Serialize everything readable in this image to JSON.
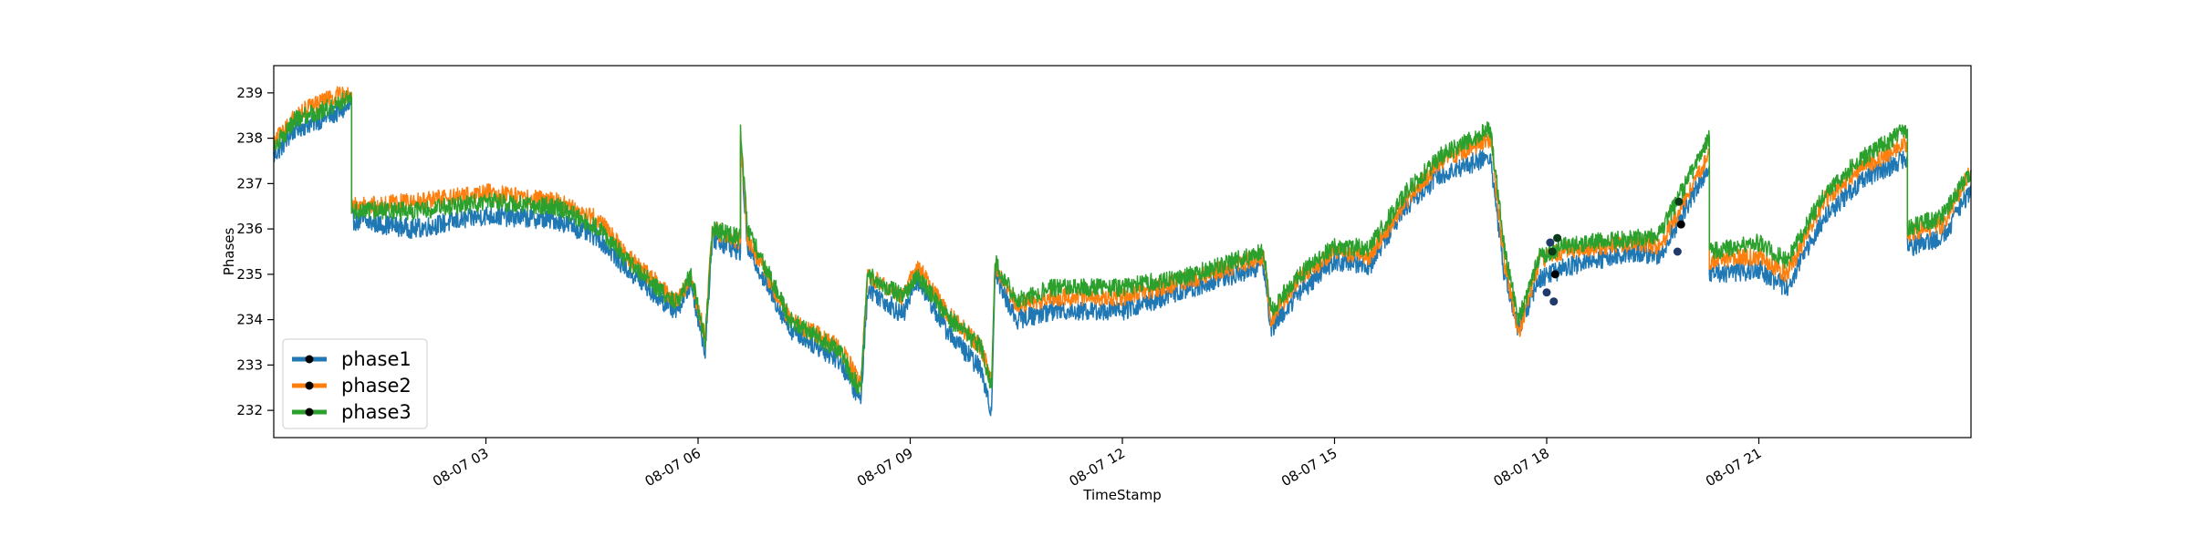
{
  "chart_data": {
    "type": "line",
    "title": "",
    "xlabel": "TimeStamp",
    "ylabel": "Phases",
    "x_range_hours": [
      0.0,
      24.0
    ],
    "ylim": [
      231.4,
      239.6
    ],
    "x_ticks": [
      {
        "hour": 3,
        "label": "08-07 03"
      },
      {
        "hour": 6,
        "label": "08-07 06"
      },
      {
        "hour": 9,
        "label": "08-07 09"
      },
      {
        "hour": 12,
        "label": "08-07 12"
      },
      {
        "hour": 15,
        "label": "08-07 15"
      },
      {
        "hour": 18,
        "label": "08-07 18"
      },
      {
        "hour": 21,
        "label": "08-07 21"
      }
    ],
    "y_ticks": [
      232,
      233,
      234,
      235,
      236,
      237,
      238,
      239
    ],
    "grid": false,
    "legend_position": "lower-left",
    "series": [
      {
        "name": "phase1",
        "color": "#1f77b4",
        "noise": 0.22,
        "points": [
          [
            0,
            237.6
          ],
          [
            0.3,
            238.2
          ],
          [
            0.8,
            238.5
          ],
          [
            1.1,
            238.7
          ],
          [
            1.1,
            236.2
          ],
          [
            2.0,
            236.0
          ],
          [
            3.0,
            236.3
          ],
          [
            4.0,
            236.2
          ],
          [
            4.6,
            235.8
          ],
          [
            5.0,
            235.1
          ],
          [
            5.5,
            234.4
          ],
          [
            5.7,
            234.2
          ],
          [
            5.9,
            234.8
          ],
          [
            6.1,
            233.3
          ],
          [
            6.2,
            235.8
          ],
          [
            6.6,
            235.5
          ],
          [
            6.6,
            237.9
          ],
          [
            6.7,
            235.6
          ],
          [
            7.3,
            233.8
          ],
          [
            8.0,
            233.1
          ],
          [
            8.3,
            232.2
          ],
          [
            8.4,
            234.7
          ],
          [
            8.9,
            234.1
          ],
          [
            9.1,
            234.9
          ],
          [
            9.5,
            233.8
          ],
          [
            10.0,
            232.9
          ],
          [
            10.15,
            232.0
          ],
          [
            10.2,
            235.0
          ],
          [
            10.5,
            234.0
          ],
          [
            11.0,
            234.2
          ],
          [
            12.0,
            234.2
          ],
          [
            13.0,
            234.7
          ],
          [
            13.6,
            235.0
          ],
          [
            14.0,
            235.2
          ],
          [
            14.1,
            233.8
          ],
          [
            14.5,
            234.6
          ],
          [
            15.0,
            235.3
          ],
          [
            15.5,
            235.2
          ],
          [
            16.0,
            236.5
          ],
          [
            16.5,
            237.2
          ],
          [
            17.2,
            237.6
          ],
          [
            17.4,
            235.0
          ],
          [
            17.6,
            233.8
          ],
          [
            17.9,
            234.9
          ],
          [
            18.2,
            235.1
          ],
          [
            18.6,
            235.3
          ],
          [
            19.3,
            235.5
          ],
          [
            19.6,
            235.4
          ],
          [
            20.3,
            237.4
          ],
          [
            20.3,
            235.0
          ],
          [
            21.0,
            235.1
          ],
          [
            21.4,
            234.7
          ],
          [
            21.9,
            236.2
          ],
          [
            22.4,
            237.0
          ],
          [
            23.1,
            237.6
          ],
          [
            23.1,
            235.6
          ],
          [
            23.6,
            235.8
          ],
          [
            24.0,
            236.9
          ]
        ]
      },
      {
        "name": "phase2",
        "color": "#ff7f0e",
        "noise": 0.2,
        "points": [
          [
            0,
            237.9
          ],
          [
            0.3,
            238.5
          ],
          [
            0.8,
            238.9
          ],
          [
            1.1,
            239.0
          ],
          [
            1.1,
            236.5
          ],
          [
            2.0,
            236.6
          ],
          [
            3.0,
            236.8
          ],
          [
            4.0,
            236.6
          ],
          [
            4.6,
            236.2
          ],
          [
            5.0,
            235.4
          ],
          [
            5.5,
            234.7
          ],
          [
            5.7,
            234.4
          ],
          [
            5.9,
            234.9
          ],
          [
            6.1,
            233.6
          ],
          [
            6.2,
            236.0
          ],
          [
            6.6,
            235.7
          ],
          [
            6.6,
            238.0
          ],
          [
            6.7,
            235.8
          ],
          [
            7.3,
            234.0
          ],
          [
            8.0,
            233.4
          ],
          [
            8.3,
            232.6
          ],
          [
            8.4,
            235.0
          ],
          [
            8.9,
            234.5
          ],
          [
            9.1,
            235.2
          ],
          [
            9.5,
            234.2
          ],
          [
            10.0,
            233.4
          ],
          [
            10.15,
            232.6
          ],
          [
            10.2,
            235.2
          ],
          [
            10.5,
            234.3
          ],
          [
            11.0,
            234.5
          ],
          [
            12.0,
            234.5
          ],
          [
            13.0,
            234.9
          ],
          [
            13.6,
            235.2
          ],
          [
            14.0,
            235.4
          ],
          [
            14.1,
            234.0
          ],
          [
            14.5,
            234.9
          ],
          [
            15.0,
            235.5
          ],
          [
            15.5,
            235.4
          ],
          [
            16.0,
            236.6
          ],
          [
            16.5,
            237.5
          ],
          [
            17.2,
            238.0
          ],
          [
            17.4,
            235.3
          ],
          [
            17.6,
            233.7
          ],
          [
            17.9,
            235.3
          ],
          [
            18.2,
            235.5
          ],
          [
            18.6,
            235.6
          ],
          [
            19.3,
            235.7
          ],
          [
            19.6,
            235.6
          ],
          [
            20.3,
            237.7
          ],
          [
            20.3,
            235.3
          ],
          [
            21.0,
            235.4
          ],
          [
            21.4,
            235.0
          ],
          [
            21.9,
            236.6
          ],
          [
            22.4,
            237.3
          ],
          [
            23.1,
            237.9
          ],
          [
            23.1,
            235.9
          ],
          [
            23.6,
            236.1
          ],
          [
            24.0,
            237.3
          ]
        ]
      },
      {
        "name": "phase3",
        "color": "#2ca02c",
        "noise": 0.2,
        "points": [
          [
            0,
            237.8
          ],
          [
            0.3,
            238.4
          ],
          [
            0.8,
            238.7
          ],
          [
            1.1,
            238.9
          ],
          [
            1.1,
            236.4
          ],
          [
            2.0,
            236.4
          ],
          [
            3.0,
            236.6
          ],
          [
            4.0,
            236.5
          ],
          [
            4.6,
            236.0
          ],
          [
            5.0,
            235.3
          ],
          [
            5.5,
            234.6
          ],
          [
            5.7,
            234.4
          ],
          [
            5.9,
            235.0
          ],
          [
            6.1,
            233.5
          ],
          [
            6.2,
            236.0
          ],
          [
            6.6,
            235.8
          ],
          [
            6.6,
            238.1
          ],
          [
            6.7,
            236.0
          ],
          [
            7.3,
            234.0
          ],
          [
            8.0,
            233.3
          ],
          [
            8.3,
            232.4
          ],
          [
            8.4,
            235.0
          ],
          [
            8.9,
            234.5
          ],
          [
            9.1,
            235.0
          ],
          [
            9.5,
            234.1
          ],
          [
            10.0,
            233.4
          ],
          [
            10.15,
            232.5
          ],
          [
            10.2,
            235.3
          ],
          [
            10.5,
            234.4
          ],
          [
            11.0,
            234.7
          ],
          [
            12.0,
            234.7
          ],
          [
            13.0,
            235.0
          ],
          [
            13.6,
            235.3
          ],
          [
            14.0,
            235.5
          ],
          [
            14.1,
            234.2
          ],
          [
            14.5,
            235.0
          ],
          [
            15.0,
            235.6
          ],
          [
            15.5,
            235.6
          ],
          [
            16.0,
            236.8
          ],
          [
            16.5,
            237.6
          ],
          [
            17.2,
            238.2
          ],
          [
            17.4,
            235.6
          ],
          [
            17.6,
            234.0
          ],
          [
            17.9,
            235.4
          ],
          [
            18.2,
            235.6
          ],
          [
            18.6,
            235.7
          ],
          [
            19.3,
            235.8
          ],
          [
            19.6,
            235.9
          ],
          [
            20.3,
            238.0
          ],
          [
            20.3,
            235.5
          ],
          [
            21.0,
            235.7
          ],
          [
            21.4,
            235.3
          ],
          [
            21.9,
            236.7
          ],
          [
            22.4,
            237.5
          ],
          [
            23.1,
            238.2
          ],
          [
            23.1,
            236.0
          ],
          [
            23.6,
            236.3
          ],
          [
            24.0,
            237.3
          ]
        ]
      }
    ],
    "markers": [
      {
        "x": 18.0,
        "y": 234.6,
        "color": "#1f3a6b"
      },
      {
        "x": 18.1,
        "y": 234.4,
        "color": "#1f3a6b"
      },
      {
        "x": 18.05,
        "y": 235.7,
        "color": "#1f3a6b"
      },
      {
        "x": 18.12,
        "y": 235.0,
        "color": "#000000"
      },
      {
        "x": 18.08,
        "y": 235.5,
        "color": "#0a3a1a"
      },
      {
        "x": 18.15,
        "y": 235.8,
        "color": "#0a3a1a"
      },
      {
        "x": 19.85,
        "y": 235.5,
        "color": "#1f3a6b"
      },
      {
        "x": 19.9,
        "y": 236.1,
        "color": "#000000"
      },
      {
        "x": 19.87,
        "y": 236.6,
        "color": "#0a3a1a"
      }
    ]
  }
}
